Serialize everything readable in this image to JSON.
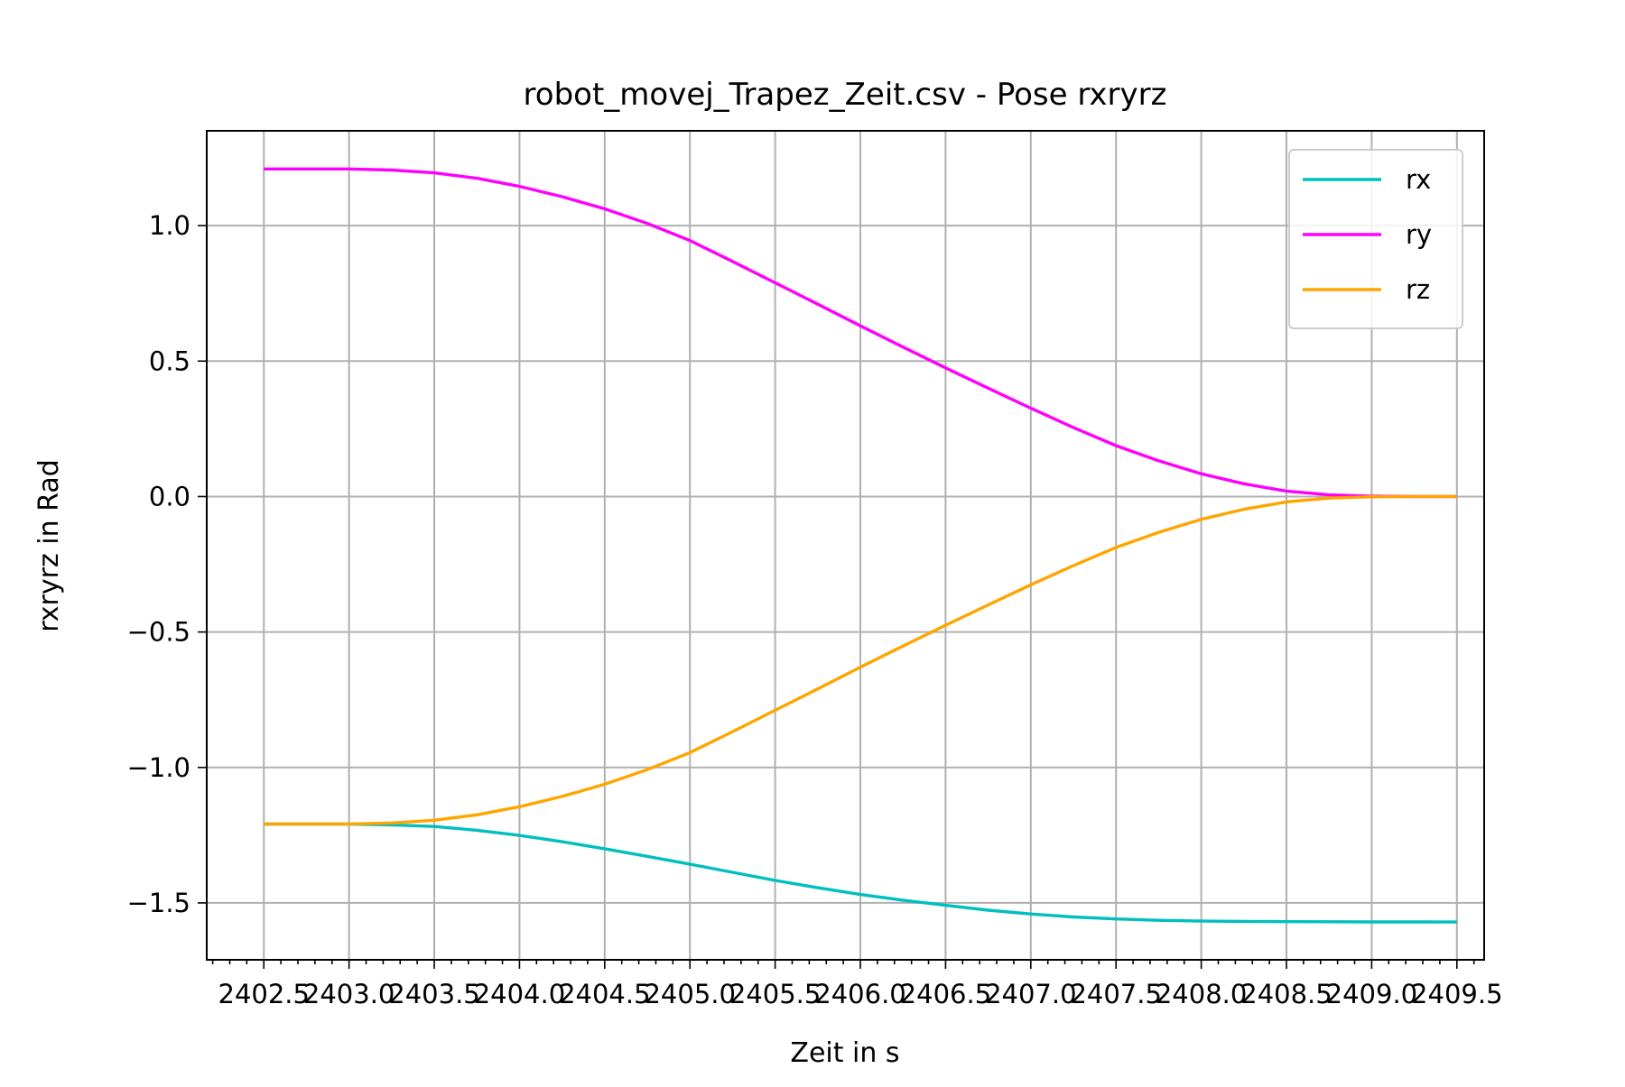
{
  "chart_data": {
    "type": "line",
    "title": "robot_movej_Trapez_Zeit.csv - Pose rxryrz",
    "xlabel": "Zeit in s",
    "ylabel": "rxryrz in Rad",
    "xlim": [
      2402.165,
      2409.66
    ],
    "ylim": [
      -1.71,
      1.35
    ],
    "xticks": [
      2402.5,
      2403.0,
      2403.5,
      2404.0,
      2404.5,
      2405.0,
      2405.5,
      2406.0,
      2406.5,
      2407.0,
      2407.5,
      2408.0,
      2408.5,
      2409.0,
      2409.5
    ],
    "xtick_labels": [
      "2402.5",
      "2403.0",
      "2403.5",
      "2404.0",
      "2404.5",
      "2405.0",
      "2405.5",
      "2406.0",
      "2406.5",
      "2407.0",
      "2407.5",
      "2408.0",
      "2408.5",
      "2409.0",
      "2409.5"
    ],
    "yticks": [
      -1.5,
      -1.0,
      -0.5,
      0.0,
      0.5,
      1.0
    ],
    "ytick_labels": [
      "−1.5",
      "−1.0",
      "−0.5",
      "0.0",
      "0.5",
      "1.0"
    ],
    "grid": true,
    "legend_position": "top-right",
    "x": [
      2402.5,
      2402.75,
      2403.0,
      2403.25,
      2403.5,
      2403.75,
      2404.0,
      2404.25,
      2404.5,
      2404.75,
      2405.0,
      2405.25,
      2405.5,
      2405.75,
      2406.0,
      2406.25,
      2406.5,
      2406.75,
      2407.0,
      2407.25,
      2407.5,
      2407.75,
      2408.0,
      2408.25,
      2408.5,
      2408.75,
      2409.0,
      2409.25,
      2409.5
    ],
    "series": [
      {
        "name": "rx",
        "color": "#00bfbf",
        "values": [
          -1.209,
          -1.209,
          -1.209,
          -1.212,
          -1.218,
          -1.232,
          -1.251,
          -1.274,
          -1.3,
          -1.328,
          -1.357,
          -1.387,
          -1.417,
          -1.444,
          -1.469,
          -1.49,
          -1.509,
          -1.527,
          -1.541,
          -1.552,
          -1.559,
          -1.564,
          -1.567,
          -1.568,
          -1.569,
          -1.5695,
          -1.57,
          -1.57,
          -1.5705
        ]
      },
      {
        "name": "ry",
        "color": "#ff00ff",
        "values": [
          1.209,
          1.209,
          1.209,
          1.205,
          1.195,
          1.175,
          1.145,
          1.107,
          1.062,
          1.008,
          0.945,
          0.868,
          0.789,
          0.71,
          0.63,
          0.552,
          0.475,
          0.4,
          0.326,
          0.255,
          0.188,
          0.132,
          0.084,
          0.047,
          0.02,
          0.006,
          0.001,
          0.0,
          0.0
        ]
      },
      {
        "name": "rz",
        "color": "#ffa500",
        "values": [
          -1.209,
          -1.209,
          -1.209,
          -1.205,
          -1.195,
          -1.175,
          -1.145,
          -1.107,
          -1.062,
          -1.008,
          -0.945,
          -0.868,
          -0.789,
          -0.71,
          -0.63,
          -0.552,
          -0.475,
          -0.4,
          -0.326,
          -0.255,
          -0.188,
          -0.132,
          -0.084,
          -0.047,
          -0.02,
          -0.006,
          -0.001,
          0.0,
          0.0
        ]
      }
    ]
  }
}
